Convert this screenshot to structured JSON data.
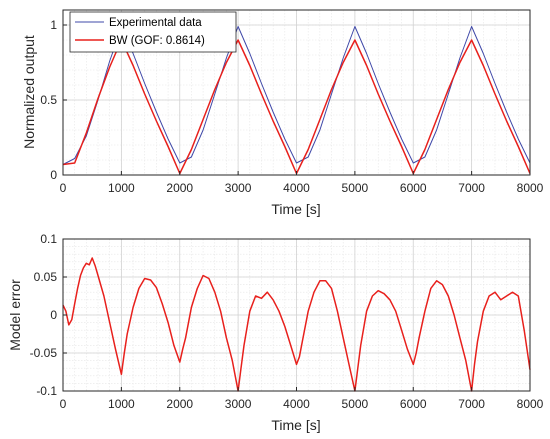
{
  "chart_data": [
    {
      "type": "line",
      "xlabel": "Time [s]",
      "ylabel": "Normalized output",
      "xlim": [
        0,
        8000
      ],
      "ylim": [
        0,
        1.1
      ],
      "grid": true,
      "minor_grid": true,
      "xticks": [
        0,
        1000,
        2000,
        3000,
        4000,
        5000,
        6000,
        7000,
        8000
      ],
      "xtick_labels": [
        "0",
        "1000",
        "2000",
        "3000",
        "4000",
        "5000",
        "6000",
        "7000",
        "8000"
      ],
      "yticks": [
        0,
        0.5,
        1
      ],
      "ytick_labels": [
        "0",
        "0.5",
        "1"
      ],
      "legend_position": "top-left",
      "series": [
        {
          "name": "Experimental data",
          "color": "#3f48a8",
          "x": [
            0,
            200,
            400,
            600,
            800,
            1000,
            1200,
            1400,
            1600,
            1800,
            2000,
            2200,
            2400,
            2600,
            2800,
            3000,
            3200,
            3400,
            3600,
            3800,
            4000,
            4200,
            4400,
            4600,
            4800,
            5000,
            5200,
            5400,
            5600,
            5800,
            6000,
            6200,
            6400,
            6600,
            6800,
            7000,
            7200,
            7400,
            7600,
            7800,
            8000
          ],
          "y": [
            0.07,
            0.11,
            0.26,
            0.5,
            0.76,
            0.98,
            0.81,
            0.61,
            0.42,
            0.24,
            0.08,
            0.12,
            0.3,
            0.54,
            0.78,
            0.99,
            0.81,
            0.61,
            0.42,
            0.24,
            0.08,
            0.12,
            0.3,
            0.54,
            0.78,
            0.99,
            0.81,
            0.61,
            0.42,
            0.24,
            0.08,
            0.12,
            0.3,
            0.54,
            0.78,
            0.99,
            0.81,
            0.61,
            0.42,
            0.24,
            0.08
          ]
        },
        {
          "name": "BW (GOF: 0.8614)",
          "color": "#e8201c",
          "x": [
            0,
            200,
            400,
            600,
            800,
            1000,
            1200,
            1400,
            1600,
            1800,
            2000,
            2200,
            2400,
            2600,
            2800,
            3000,
            3200,
            3400,
            3600,
            3800,
            4000,
            4200,
            4400,
            4600,
            4800,
            5000,
            5200,
            5400,
            5600,
            5800,
            6000,
            6200,
            6400,
            6600,
            6800,
            7000,
            7200,
            7400,
            7600,
            7800,
            8000
          ],
          "y": [
            0.07,
            0.08,
            0.28,
            0.51,
            0.72,
            0.9,
            0.73,
            0.54,
            0.36,
            0.19,
            0.01,
            0.17,
            0.37,
            0.57,
            0.75,
            0.9,
            0.73,
            0.54,
            0.36,
            0.19,
            0.01,
            0.17,
            0.37,
            0.57,
            0.75,
            0.9,
            0.73,
            0.54,
            0.36,
            0.19,
            0.01,
            0.17,
            0.37,
            0.57,
            0.75,
            0.9,
            0.73,
            0.54,
            0.36,
            0.19,
            0.01
          ]
        }
      ]
    },
    {
      "type": "line",
      "xlabel": "Time [s]",
      "ylabel": "Model error",
      "xlim": [
        0,
        8000
      ],
      "ylim": [
        -0.1,
        0.1
      ],
      "grid": true,
      "minor_grid": true,
      "xticks": [
        0,
        1000,
        2000,
        3000,
        4000,
        5000,
        6000,
        7000,
        8000
      ],
      "xtick_labels": [
        "0",
        "1000",
        "2000",
        "3000",
        "4000",
        "5000",
        "6000",
        "7000",
        "8000"
      ],
      "yticks": [
        -0.1,
        -0.05,
        0,
        0.05,
        0.1
      ],
      "ytick_labels": [
        "-0.1",
        "-0.05",
        "0",
        "0.05",
        "0.1"
      ],
      "series": [
        {
          "color": "#e8201c",
          "x": [
            0,
            50,
            100,
            150,
            200,
            250,
            300,
            350,
            400,
            450,
            500,
            550,
            600,
            700,
            800,
            900,
            1000,
            1050,
            1100,
            1200,
            1300,
            1400,
            1500,
            1600,
            1700,
            1800,
            1900,
            2000,
            2050,
            2100,
            2200,
            2300,
            2400,
            2500,
            2600,
            2700,
            2800,
            2900,
            3000,
            3050,
            3100,
            3200,
            3300,
            3400,
            3500,
            3600,
            3700,
            3800,
            3900,
            4000,
            4050,
            4100,
            4200,
            4300,
            4400,
            4500,
            4600,
            4700,
            4800,
            4900,
            5000,
            5050,
            5100,
            5200,
            5300,
            5400,
            5500,
            5600,
            5700,
            5800,
            5900,
            6000,
            6050,
            6100,
            6200,
            6300,
            6400,
            6500,
            6600,
            6700,
            6800,
            6900,
            7000,
            7050,
            7100,
            7200,
            7300,
            7400,
            7500,
            7600,
            7700,
            7800,
            7900,
            8000
          ],
          "y": [
            0.013,
            0.005,
            -0.013,
            -0.006,
            0.015,
            0.035,
            0.052,
            0.062,
            0.068,
            0.066,
            0.075,
            0.065,
            0.052,
            0.025,
            -0.01,
            -0.045,
            -0.078,
            -0.05,
            -0.025,
            0.01,
            0.035,
            0.048,
            0.046,
            0.036,
            0.015,
            -0.01,
            -0.04,
            -0.062,
            -0.045,
            -0.03,
            0.01,
            0.035,
            0.052,
            0.048,
            0.03,
            0.005,
            -0.03,
            -0.06,
            -0.1,
            -0.07,
            -0.04,
            0.005,
            0.025,
            0.022,
            0.03,
            0.02,
            0.005,
            -0.015,
            -0.04,
            -0.065,
            -0.055,
            -0.035,
            0.005,
            0.03,
            0.045,
            0.045,
            0.035,
            0.005,
            -0.03,
            -0.065,
            -0.1,
            -0.07,
            -0.04,
            0.005,
            0.025,
            0.032,
            0.028,
            0.02,
            0.005,
            -0.02,
            -0.045,
            -0.065,
            -0.05,
            -0.03,
            0.005,
            0.035,
            0.045,
            0.04,
            0.025,
            0.0,
            -0.03,
            -0.06,
            -0.1,
            -0.065,
            -0.035,
            0.005,
            0.025,
            0.03,
            0.02,
            0.025,
            0.03,
            0.025,
            -0.02,
            -0.072
          ]
        }
      ]
    }
  ]
}
